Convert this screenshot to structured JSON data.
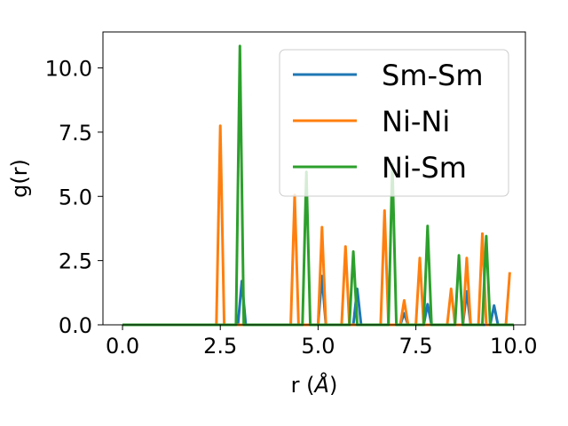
{
  "chart_data": {
    "type": "line",
    "title": "",
    "xlabel_prefix": "r (",
    "xlabel_unit": "Å",
    "xlabel_suffix": ")",
    "ylabel": "g(r)",
    "xlim": [
      -0.5,
      10.3
    ],
    "ylim": [
      0,
      11.4
    ],
    "xticks": [
      0.0,
      2.5,
      5.0,
      7.5,
      10.0
    ],
    "xtick_labels": [
      "0.0",
      "2.5",
      "5.0",
      "7.5",
      "10.0"
    ],
    "yticks": [
      0.0,
      2.5,
      5.0,
      7.5,
      10.0
    ],
    "ytick_labels": [
      "0.0",
      "2.5",
      "5.0",
      "7.5",
      "10.0"
    ],
    "grid": false,
    "legend_position": "top-right",
    "series": [
      {
        "name": "Sm-Sm",
        "color": "#1f77b4",
        "x": [
          0.0,
          2.95,
          3.05,
          3.15,
          5.0,
          5.1,
          5.2,
          5.9,
          6.0,
          6.1,
          7.1,
          7.2,
          7.3,
          7.7,
          7.8,
          7.9,
          8.7,
          8.8,
          8.9,
          9.4,
          9.5,
          9.6,
          10.0
        ],
        "y": [
          0.0,
          0.0,
          1.7,
          0.0,
          0.0,
          1.9,
          0.0,
          0.0,
          1.4,
          0.0,
          0.0,
          0.45,
          0.0,
          0.0,
          0.8,
          0.0,
          0.0,
          1.3,
          0.0,
          0.0,
          0.75,
          0.0,
          0.0
        ]
      },
      {
        "name": "Ni-Ni",
        "color": "#ff7f0e",
        "x": [
          0.0,
          2.4,
          2.5,
          2.6,
          4.3,
          4.4,
          4.5,
          5.0,
          5.1,
          5.2,
          5.6,
          5.7,
          5.8,
          6.6,
          6.7,
          6.8,
          7.1,
          7.2,
          7.3,
          7.5,
          7.6,
          7.7,
          8.3,
          8.4,
          8.5,
          8.7,
          8.8,
          8.9,
          9.1,
          9.2,
          9.3,
          9.8,
          9.9
        ],
        "y": [
          0.0,
          0.0,
          7.75,
          0.0,
          0.0,
          5.05,
          0.0,
          0.0,
          3.8,
          0.0,
          0.0,
          3.05,
          0.0,
          0.0,
          4.45,
          0.0,
          0.0,
          0.95,
          0.0,
          0.0,
          2.6,
          0.0,
          0.0,
          1.4,
          0.0,
          0.0,
          2.6,
          0.0,
          0.0,
          3.55,
          0.0,
          0.0,
          2.05
        ]
      },
      {
        "name": "Ni-Sm",
        "color": "#2ca02c",
        "x": [
          0.0,
          2.9,
          3.0,
          3.1,
          4.6,
          4.7,
          4.8,
          5.8,
          5.9,
          6.0,
          6.8,
          6.9,
          7.0,
          7.7,
          7.8,
          7.9,
          8.5,
          8.6,
          8.7,
          9.2,
          9.3,
          9.4,
          10.0
        ],
        "y": [
          0.0,
          0.0,
          10.85,
          0.0,
          0.0,
          5.95,
          0.0,
          0.0,
          2.85,
          0.0,
          0.0,
          6.25,
          0.0,
          0.0,
          3.85,
          0.0,
          0.0,
          2.7,
          0.0,
          0.0,
          3.45,
          0.0,
          0.0
        ]
      }
    ]
  }
}
